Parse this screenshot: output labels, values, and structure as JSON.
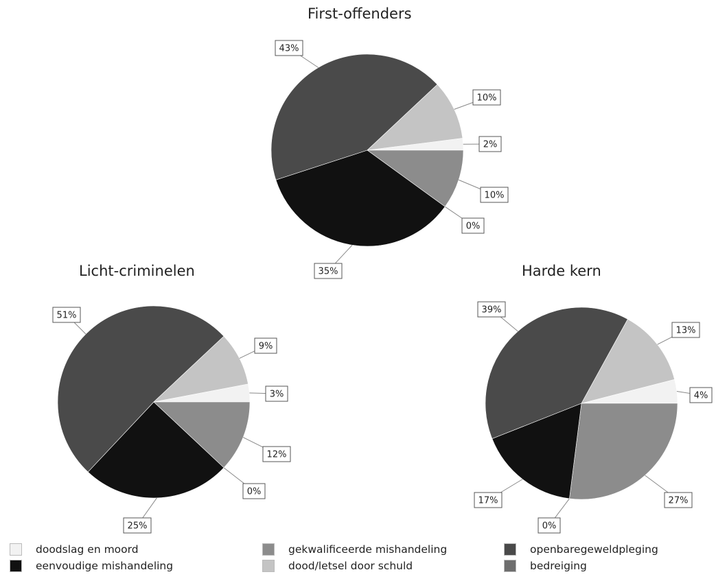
{
  "chart_data": [
    {
      "type": "pie",
      "title": "First-offenders",
      "slices": [
        {
          "category": "doodslag en moord",
          "value": 2,
          "label": "2%"
        },
        {
          "category": "gekwalificeerde mishandeling",
          "value": 10,
          "label": "10%"
        },
        {
          "category": "bedreiging",
          "value": 0,
          "label": "0%"
        },
        {
          "category": "eenvoudige mishandeling",
          "value": 35,
          "label": "35%"
        },
        {
          "category": "openbaregeweldpleging",
          "value": 43,
          "label": "43%"
        },
        {
          "category": "dood/letsel door schuld",
          "value": 10,
          "label": "10%"
        }
      ]
    },
    {
      "type": "pie",
      "title": "Licht-criminelen",
      "slices": [
        {
          "category": "doodslag en moord",
          "value": 3,
          "label": "3%"
        },
        {
          "category": "gekwalificeerde mishandeling",
          "value": 12,
          "label": "12%"
        },
        {
          "category": "bedreiging",
          "value": 0,
          "label": "0%"
        },
        {
          "category": "eenvoudige mishandeling",
          "value": 25,
          "label": "25%"
        },
        {
          "category": "openbaregeweldpleging",
          "value": 51,
          "label": "51%"
        },
        {
          "category": "dood/letsel door schuld",
          "value": 9,
          "label": "9%"
        }
      ]
    },
    {
      "type": "pie",
      "title": "Harde kern",
      "slices": [
        {
          "category": "doodslag en moord",
          "value": 4,
          "label": "4%"
        },
        {
          "category": "gekwalificeerde mishandeling",
          "value": 27,
          "label": "27%"
        },
        {
          "category": "bedreiging",
          "value": 0,
          "label": "0%"
        },
        {
          "category": "eenvoudige mishandeling",
          "value": 17,
          "label": "17%"
        },
        {
          "category": "openbaregeweldpleging",
          "value": 39,
          "label": "39%"
        },
        {
          "category": "dood/letsel door schuld",
          "value": 13,
          "label": "13%"
        }
      ]
    }
  ],
  "legend": [
    {
      "label": "doodslag en moord",
      "color": "#f2f2f2"
    },
    {
      "label": "eenvoudige mishandeling",
      "color": "#111111"
    },
    {
      "label": "gekwalificeerde mishandeling",
      "color": "#8c8c8c"
    },
    {
      "label": "dood/letsel door schuld",
      "color": "#c4c4c4"
    },
    {
      "label": "openbaregeweldpleging",
      "color": "#4a4a4a"
    },
    {
      "label": "bedreiging",
      "color": "#6e6e6e"
    }
  ],
  "colors": {
    "doodslag en moord": "#f2f2f2",
    "gekwalificeerde mishandeling": "#8c8c8c",
    "bedreiging": "#6e6e6e",
    "eenvoudige mishandeling": "#111111",
    "openbaregeweldpleging": "#4a4a4a",
    "dood/letsel door schuld": "#c4c4c4"
  }
}
